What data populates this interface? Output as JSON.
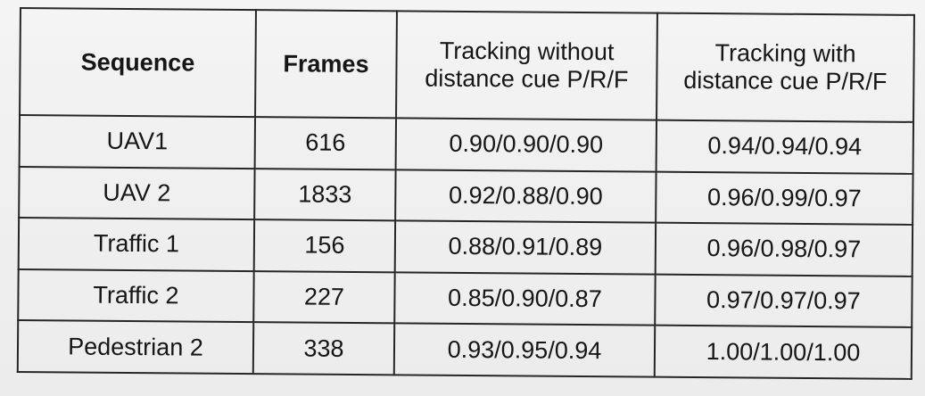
{
  "table": {
    "headers": [
      {
        "line1": "Sequence",
        "line2": ""
      },
      {
        "line1": "Frames",
        "line2": ""
      },
      {
        "line1": "Tracking without",
        "line2": "distance cue P/R/F"
      },
      {
        "line1": "Tracking with",
        "line2": "distance cue P/R/F"
      }
    ],
    "rows": [
      [
        "UAV1",
        "616",
        "0.90/0.90/0.90",
        "0.94/0.94/0.94"
      ],
      [
        "UAV 2",
        "1833",
        "0.92/0.88/0.90",
        "0.96/0.99/0.97"
      ],
      [
        "Traffic 1",
        "156",
        "0.88/0.91/0.89",
        "0.96/0.98/0.97"
      ],
      [
        "Traffic 2",
        "227",
        "0.85/0.90/0.87",
        "0.97/0.97/0.97"
      ],
      [
        "Pedestrian 2",
        "338",
        "0.93/0.95/0.94",
        "1.00/1.00/1.00"
      ]
    ]
  }
}
